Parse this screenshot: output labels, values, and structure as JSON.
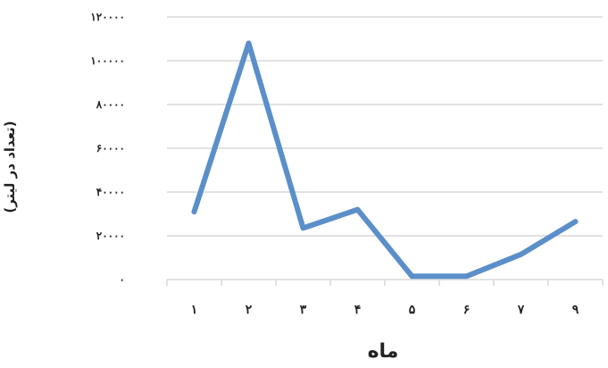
{
  "chart_data": {
    "type": "line",
    "categories": [
      "۱",
      "۲",
      "۳",
      "۴",
      "۵",
      "۶",
      "۷",
      "۹"
    ],
    "series": [
      {
        "values": [
          31000,
          108000,
          23500,
          32000,
          1500,
          1500,
          11500,
          26500
        ]
      }
    ],
    "ylim": [
      0,
      120000
    ],
    "yticks": [
      "۰",
      "۲۰۰۰۰",
      "۴۰۰۰۰",
      "۶۰۰۰۰",
      "۸۰۰۰۰",
      "۱۰۰۰۰۰",
      "۱۲۰۰۰۰"
    ],
    "xlabel": "ماه",
    "ylabel": "(تعداد در لیتر)",
    "grid": true,
    "line_color": "#5b8fc9",
    "grid_color": "#d9d9d9"
  }
}
